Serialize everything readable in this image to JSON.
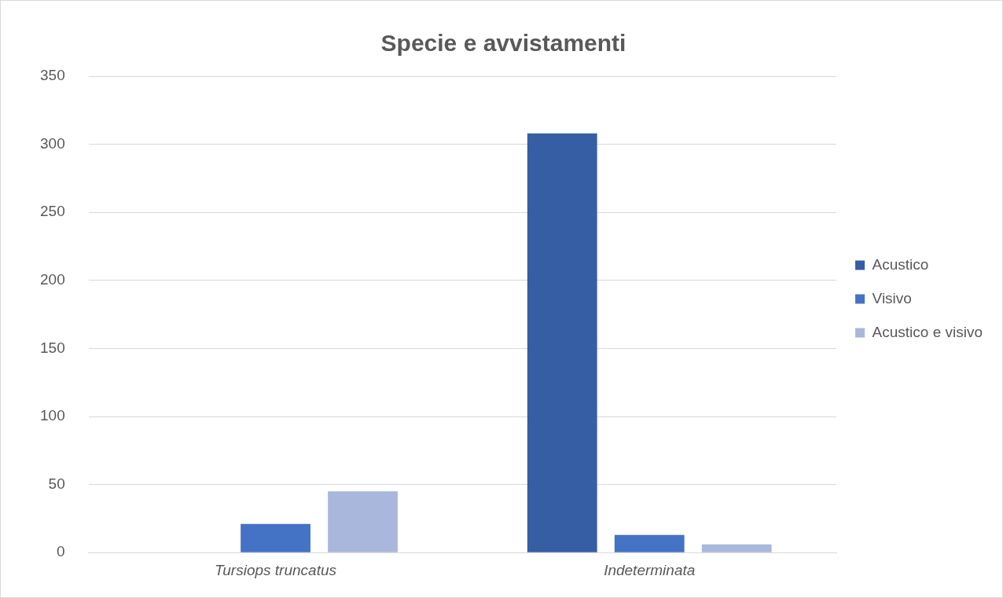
{
  "chart_data": {
    "type": "bar",
    "title": "Specie e avvistamenti",
    "categories": [
      "Tursiops truncatus",
      "Indeterminata"
    ],
    "series": [
      {
        "name": "Acustico",
        "color": "#355ea4",
        "values": [
          0,
          308
        ]
      },
      {
        "name": "Visivo",
        "color": "#4472c4",
        "values": [
          21,
          13
        ]
      },
      {
        "name": "Acustico e visivo",
        "color": "#a9b7dc",
        "values": [
          45,
          6
        ]
      }
    ],
    "ylim": [
      0,
      350
    ],
    "yticks": [
      0,
      50,
      100,
      150,
      200,
      250,
      300,
      350
    ],
    "grid": "y",
    "legend": "right"
  }
}
